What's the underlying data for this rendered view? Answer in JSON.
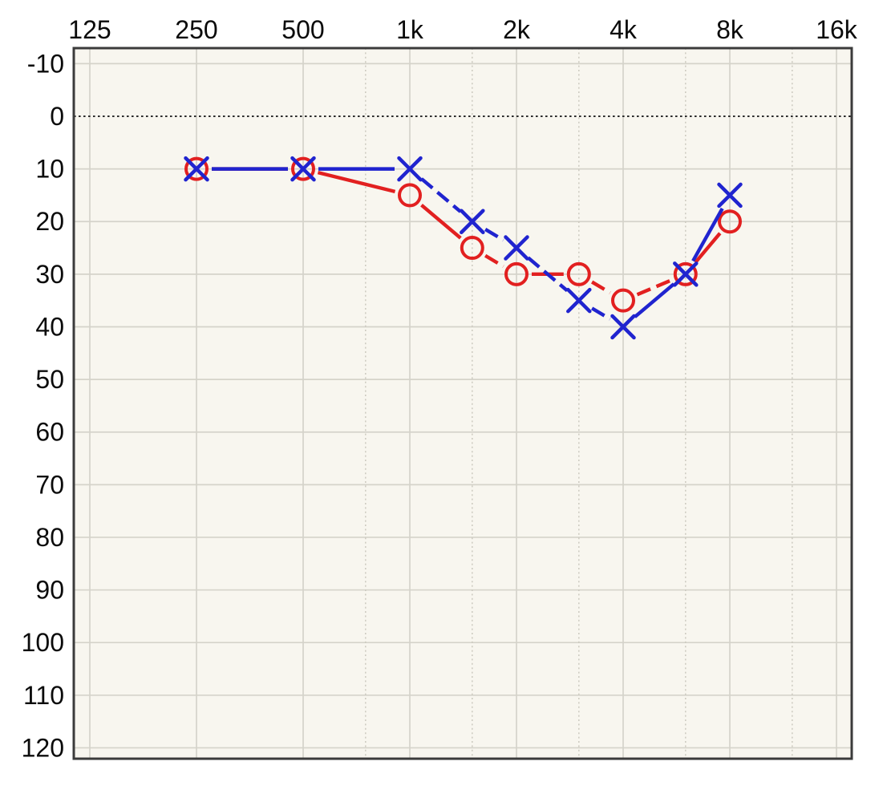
{
  "chart_data": {
    "type": "line",
    "chart_kind": "audiogram-grid",
    "title": "",
    "xlabel": "",
    "ylabel": "",
    "grid": "on",
    "legend": "none",
    "x_axis": {
      "position": "top",
      "scale": "log-octave",
      "tick_labels": [
        "125",
        "250",
        "500",
        "1k",
        "2k",
        "4k",
        "8k",
        "16k"
      ],
      "tick_freqs": [
        125,
        250,
        500,
        1000,
        2000,
        4000,
        8000,
        16000
      ],
      "minor_gridline_freqs": [
        750,
        1500,
        3000,
        6000,
        12000
      ]
    },
    "y_axis": {
      "position": "left",
      "tick_labels": [
        "-10",
        "0",
        "10",
        "20",
        "30",
        "40",
        "50",
        "60",
        "70",
        "80",
        "90",
        "100",
        "110",
        "120"
      ],
      "tick_values": [
        -10,
        0,
        10,
        20,
        30,
        40,
        50,
        60,
        70,
        80,
        90,
        100,
        110,
        120
      ],
      "ylim": [
        -12.9,
        122.1
      ],
      "zero_reference_line": 0
    },
    "series": [
      {
        "id": "circle-series",
        "marker": "circle",
        "color": "#e22020",
        "points": [
          {
            "f": 250,
            "db": 10
          },
          {
            "f": 500,
            "db": 10
          },
          {
            "f": 1000,
            "db": 15
          },
          {
            "f": 1500,
            "db": 25
          },
          {
            "f": 2000,
            "db": 30
          },
          {
            "f": 3000,
            "db": 30
          },
          {
            "f": 4000,
            "db": 35
          },
          {
            "f": 6000,
            "db": 30
          },
          {
            "f": 8000,
            "db": 20
          }
        ],
        "segment_styles": [
          "solid",
          "solid",
          "solid",
          "dashed",
          "solid",
          "dashed",
          "dashed",
          "solid"
        ]
      },
      {
        "id": "x-series",
        "marker": "x",
        "color": "#2024cf",
        "points": [
          {
            "f": 250,
            "db": 10
          },
          {
            "f": 500,
            "db": 10
          },
          {
            "f": 1000,
            "db": 10
          },
          {
            "f": 1500,
            "db": 20
          },
          {
            "f": 2000,
            "db": 25
          },
          {
            "f": 3000,
            "db": 35
          },
          {
            "f": 4000,
            "db": 40
          },
          {
            "f": 6000,
            "db": 30
          },
          {
            "f": 8000,
            "db": 15
          }
        ],
        "segment_styles": [
          "solid",
          "solid",
          "dashed",
          "dashed",
          "dashed",
          "dashed",
          "solid",
          "solid"
        ]
      }
    ],
    "colors": {
      "plot_background": "#f8f6ef",
      "grid_major": "#d5d3ca",
      "grid_minor": "#ccc9bf",
      "zero_line": "#2e2e2e",
      "border": "#3b3b3b",
      "tick_text": "#0b0b0b",
      "series_circle": "#e22020",
      "series_x": "#2024cf"
    }
  }
}
